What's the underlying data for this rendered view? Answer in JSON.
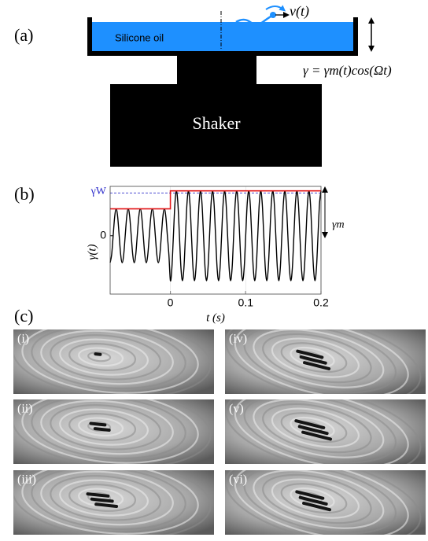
{
  "figure": {
    "panel_a": {
      "label": "(a)",
      "fluid_label": "Silicone oil",
      "velocity_label": "v(t)",
      "forcing_label": "γ = γm(t)cos(Ωt)",
      "shaker_label": "Shaker"
    },
    "panel_b_label": "(b)",
    "panel_c": {
      "label": "(c)",
      "images": [
        {
          "label": "(i)"
        },
        {
          "label": "(ii)"
        },
        {
          "label": "(iii)"
        },
        {
          "label": "(iv)"
        },
        {
          "label": "(v)"
        },
        {
          "label": "(vi)"
        }
      ]
    }
  },
  "chart_data": {
    "type": "line",
    "xlabel": "t (s)",
    "ylabel": "γ(t)",
    "xlim": [
      -0.08,
      0.2
    ],
    "ylim": [
      -1.3,
      1.1
    ],
    "xticks": [
      0,
      0.1,
      0.2
    ],
    "yticks": [
      0
    ],
    "series": [
      {
        "color": "#000000",
        "x": [
          -0.08,
          -0.078,
          -0.076,
          -0.074,
          -0.072,
          -0.07,
          -0.068,
          -0.066,
          -0.064,
          -0.062,
          -0.06,
          -0.058,
          -0.056,
          -0.054,
          -0.052,
          -0.05,
          -0.048,
          -0.046,
          -0.044,
          -0.042,
          -0.04,
          -0.038,
          -0.036,
          -0.034,
          -0.032,
          -0.03,
          -0.028,
          -0.026,
          -0.024,
          -0.022,
          -0.02,
          -0.018,
          -0.016,
          -0.014,
          -0.012,
          -0.01,
          -0.008,
          -0.006,
          -0.004,
          -0.002,
          0,
          0.002,
          0.004,
          0.006,
          0.008,
          0.01,
          0.012,
          0.014,
          0.016,
          0.018,
          0.02,
          0.022,
          0.024,
          0.026,
          0.028,
          0.03,
          0.032,
          0.034,
          0.036,
          0.038,
          0.04,
          0.042,
          0.044,
          0.046,
          0.048,
          0.05,
          0.052,
          0.054,
          0.056,
          0.058,
          0.06,
          0.062,
          0.064,
          0.066,
          0.068,
          0.07,
          0.072,
          0.074,
          0.076,
          0.078,
          0.08,
          0.082,
          0.084,
          0.086,
          0.088,
          0.09,
          0.092,
          0.094,
          0.096,
          0.098,
          0.1,
          0.102,
          0.104,
          0.106,
          0.108,
          0.11,
          0.112,
          0.114,
          0.116,
          0.118,
          0.12,
          0.122,
          0.124,
          0.126,
          0.128,
          0.13,
          0.132,
          0.134,
          0.136,
          0.138,
          0.14,
          0.142,
          0.144,
          0.146,
          0.148,
          0.15,
          0.152,
          0.154,
          0.156,
          0.158,
          0.16,
          0.162,
          0.164,
          0.166,
          0.168,
          0.17,
          0.172,
          0.174,
          0.176,
          0.178,
          0.18,
          0.182,
          0.184,
          0.186,
          0.188,
          0.19,
          0.192,
          0.194,
          0.196,
          0.198,
          0.2
        ],
        "values": [
          -0.6,
          -0.42,
          0,
          0.42,
          0.6,
          0.42,
          0,
          -0.42,
          -0.6,
          -0.42,
          0,
          0.42,
          0.6,
          0.42,
          0,
          -0.42,
          -0.6,
          -0.42,
          0,
          0.42,
          0.6,
          0.42,
          0,
          -0.42,
          -0.6,
          -0.42,
          0,
          0.42,
          0.6,
          0.42,
          0,
          -0.42,
          -0.6,
          -0.42,
          0,
          0.42,
          0.6,
          0.42,
          0,
          -0.42,
          -1,
          -0.71,
          0,
          0.71,
          1,
          0.71,
          0,
          -0.71,
          -1,
          -0.71,
          0,
          0.71,
          1,
          0.71,
          0,
          -0.71,
          -1,
          -0.71,
          0,
          0.71,
          1,
          0.71,
          0,
          -0.71,
          -1,
          -0.71,
          0,
          0.71,
          1,
          0.71,
          0,
          -0.71,
          -1,
          -0.71,
          0,
          0.71,
          1,
          0.71,
          0,
          -0.71,
          -1,
          -0.71,
          0,
          0.71,
          1,
          0.71,
          0,
          -0.71,
          -1,
          -0.71,
          0,
          0.71,
          1,
          0.71,
          0,
          -0.71,
          -1,
          -0.71,
          0,
          0.71,
          1,
          0.71,
          0,
          -0.71,
          -1,
          -0.71,
          0,
          0.71,
          1,
          0.71,
          0,
          -0.71,
          -1,
          -0.71,
          0,
          0.71,
          1,
          0.71,
          0,
          -0.71,
          -1,
          -0.71,
          0,
          0.71,
          1,
          0.71,
          0,
          -0.71,
          -1,
          -0.71,
          0,
          0.71,
          1,
          0.71,
          0,
          -0.71,
          -1,
          -0.71,
          0,
          0.71,
          1
        ]
      },
      {
        "color": "#e41a1c",
        "x": [
          -0.08,
          0,
          0,
          0.2
        ],
        "values": [
          0.6,
          0.6,
          1,
          1
        ]
      }
    ],
    "annotations": [
      {
        "text": "γW",
        "y": 0.95,
        "color": "#3333cc"
      },
      {
        "text": "γm"
      }
    ]
  }
}
